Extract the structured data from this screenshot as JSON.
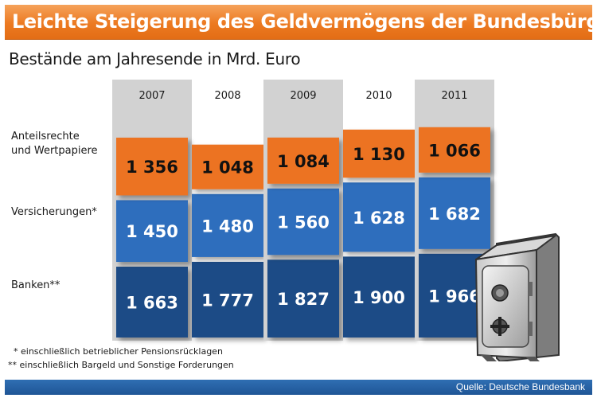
{
  "title": "Leichte Steigerung des Geldvermögens der Bundesbürger",
  "subtitle": "Bestände am Jahresende in Mrd. Euro",
  "row_labels": {
    "anteilsrechte_line1": "Anteilsrechte",
    "anteilsrechte_line2": "und Wertpapiere",
    "versicherungen": "Versicherungen*",
    "banken": "Banken**"
  },
  "footnotes": [
    "* einschließlich betrieblicher Pensionsrücklagen",
    "** einschließlich Bargeld und Sonstige Forderungen"
  ],
  "source": "Quelle: Deutsche Bundesbank",
  "colors": {
    "anteilsrechte": "#ec7322",
    "versicherungen": "#2f6ebd",
    "banken": "#1d4c86",
    "year_header_shaded": "#d2d2d2",
    "title_bar": "#ec7a21"
  },
  "chart_data": {
    "type": "bar",
    "stacked": true,
    "categories": [
      "2007",
      "2008",
      "2009",
      "2010",
      "2011"
    ],
    "series": [
      {
        "name": "Banken**",
        "values": [
          1663,
          1777,
          1827,
          1900,
          1966
        ],
        "labels": [
          "1 663",
          "1 777",
          "1 827",
          "1 900",
          "1 966"
        ]
      },
      {
        "name": "Versicherungen*",
        "values": [
          1450,
          1480,
          1560,
          1628,
          1682
        ],
        "labels": [
          "1 450",
          "1 480",
          "1 560",
          "1 628",
          "1 682"
        ]
      },
      {
        "name": "Anteilsrechte und Wertpapiere",
        "values": [
          1356,
          1048,
          1084,
          1130,
          1066
        ],
        "labels": [
          "1 356",
          "1 048",
          "1 084",
          "1 130",
          "1 066"
        ]
      }
    ],
    "title": "Leichte Steigerung des Geldvermögens der Bundesbürger",
    "subtitle": "Bestände am Jahresende in Mrd. Euro",
    "unit": "Mrd. Euro"
  }
}
